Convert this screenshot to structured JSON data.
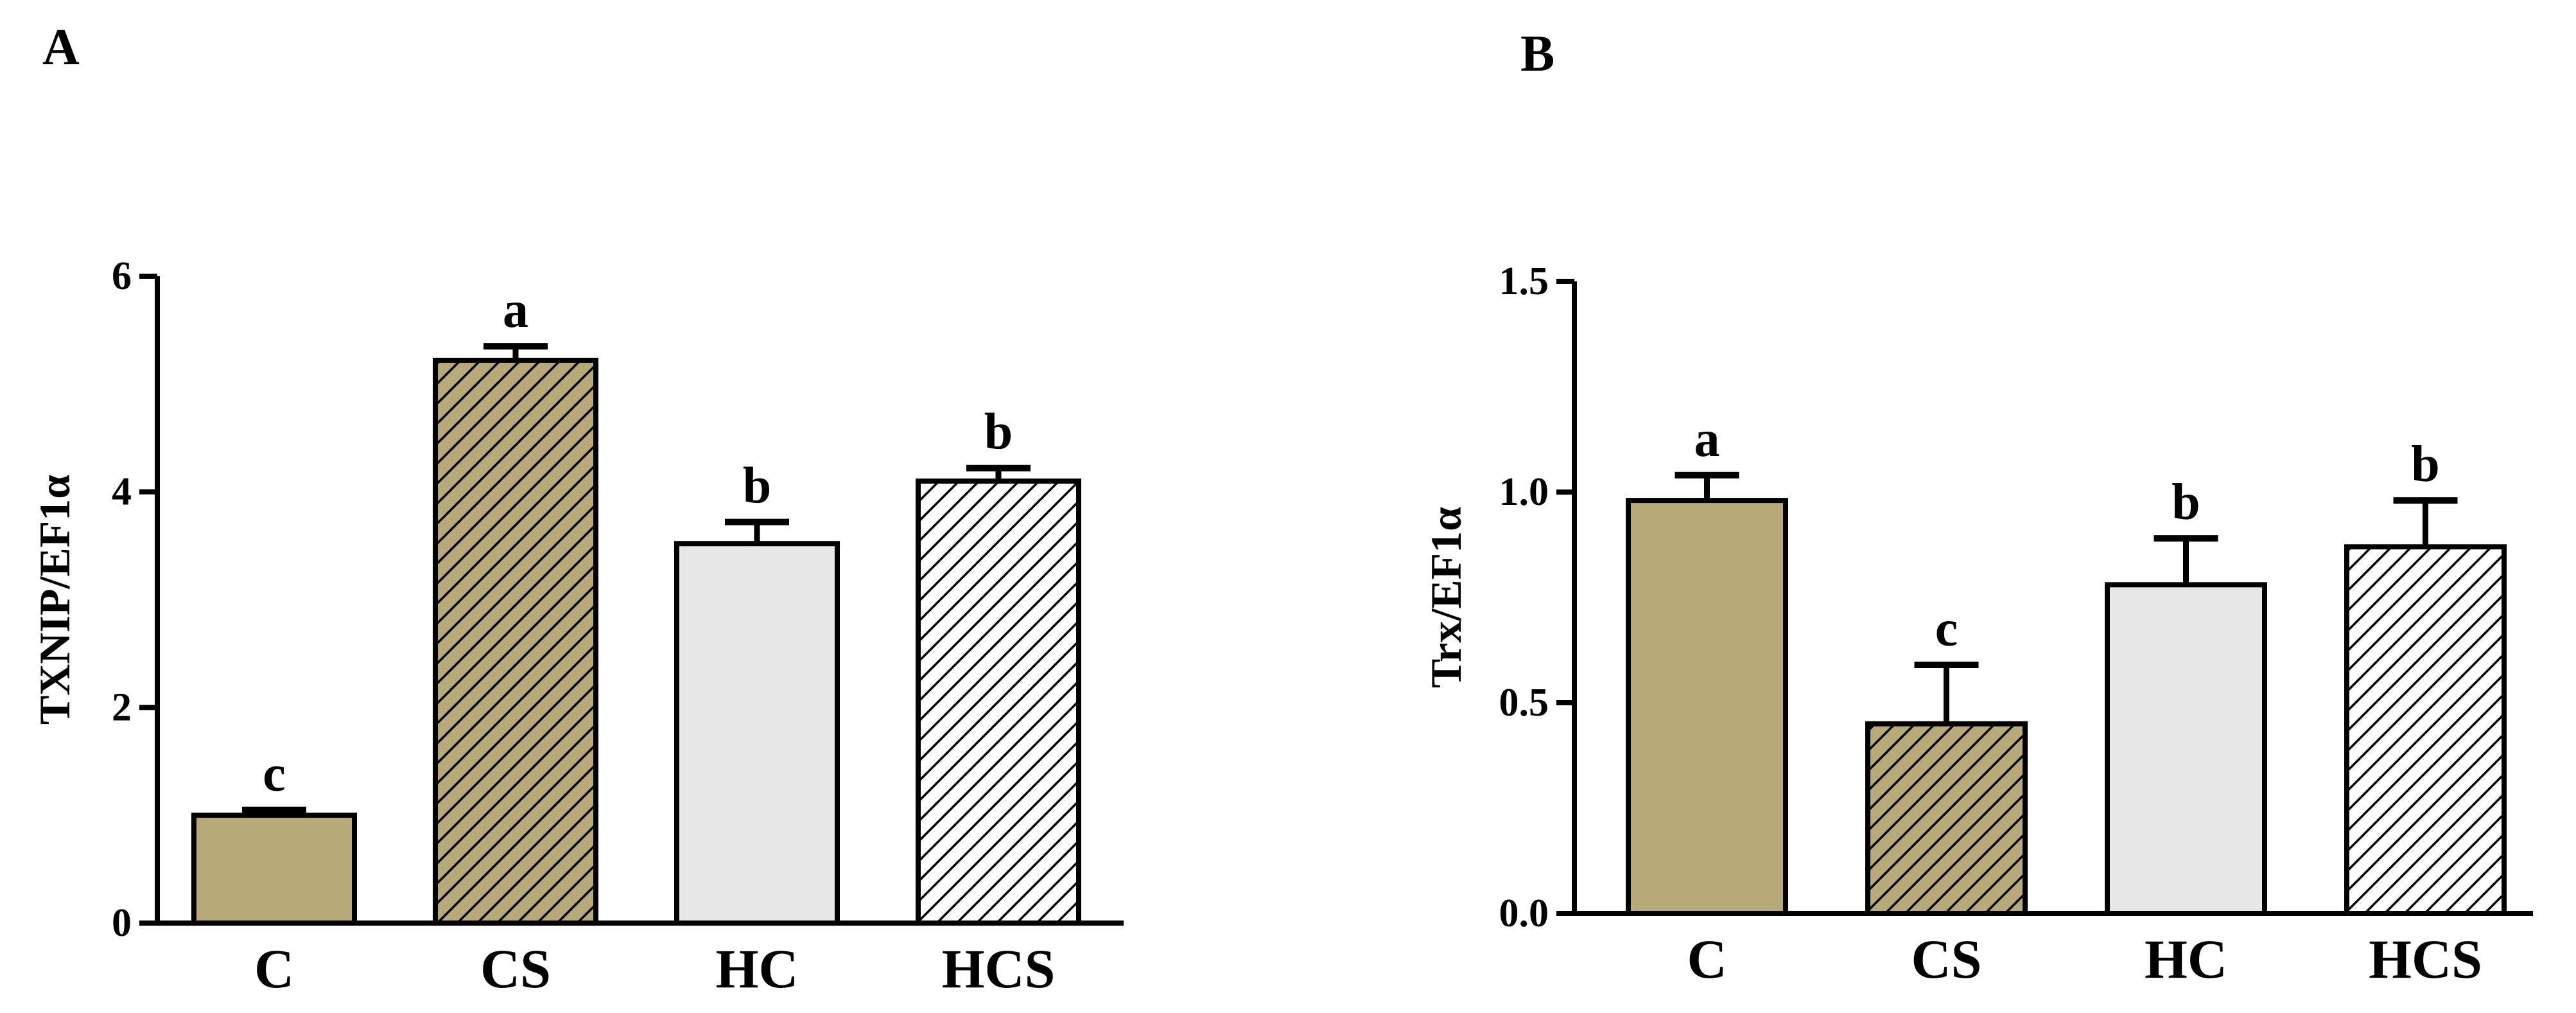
{
  "chart_data": [
    {
      "type": "bar",
      "panel_label": "A",
      "ylabel": "TXNIP/EF1α",
      "ylim": [
        0,
        6
      ],
      "yticks": [
        "0",
        "2",
        "4",
        "6"
      ],
      "ytick_values": [
        0,
        2,
        4,
        6
      ],
      "grid": false,
      "categories": [
        "C",
        "CS",
        "HC",
        "HCS"
      ],
      "values": [
        1.0,
        5.22,
        3.52,
        4.1
      ],
      "errors": [
        0.05,
        0.13,
        0.2,
        0.12
      ],
      "significance": [
        "c",
        "a",
        "b",
        "b"
      ],
      "fills": [
        "solid-olive",
        "hatched-olive",
        "solid-light-gray",
        "hatched-white"
      ]
    },
    {
      "type": "bar",
      "panel_label": "B",
      "ylabel": "Trx/EF1α",
      "ylim": [
        0,
        1.5
      ],
      "yticks": [
        "0.0",
        "0.5",
        "1.0",
        "1.5"
      ],
      "ytick_values": [
        0,
        0.5,
        1.0,
        1.5
      ],
      "grid": false,
      "categories": [
        "C",
        "CS",
        "HC",
        "HCS"
      ],
      "values": [
        0.98,
        0.45,
        0.78,
        0.87
      ],
      "errors": [
        0.06,
        0.14,
        0.11,
        0.11
      ],
      "significance": [
        "a",
        "c",
        "b",
        "b"
      ],
      "fills": [
        "solid-olive",
        "hatched-olive",
        "solid-light-gray",
        "hatched-white"
      ]
    }
  ],
  "colors": {
    "olive": "#b8aa78",
    "light_gray": "#e6e6e6",
    "hatch_white_bg": "#ffffff",
    "outline": "#000000"
  }
}
